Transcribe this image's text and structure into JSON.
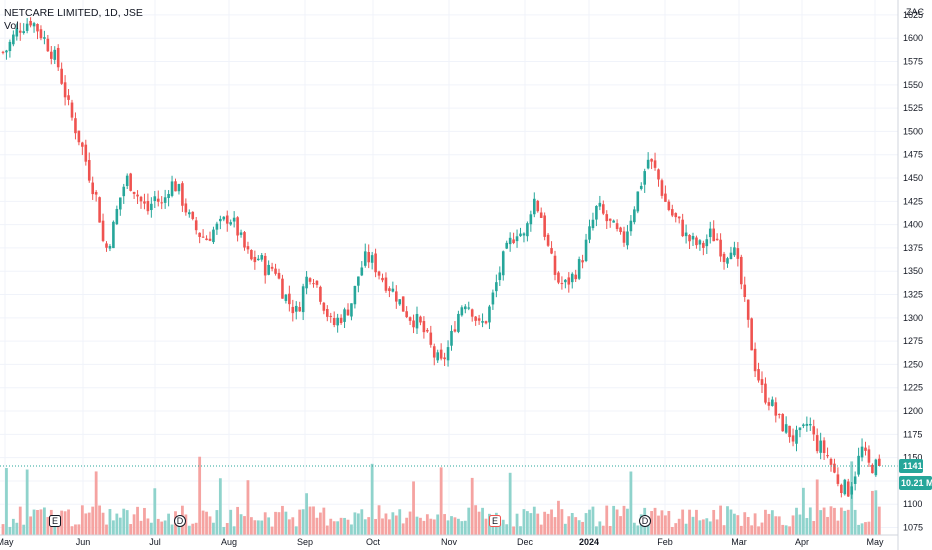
{
  "header": {
    "symbol_line": "NETCARE LIMITED, 1D, JSE",
    "volume_label": "Vol"
  },
  "colors": {
    "up": "#26a69a",
    "down": "#ef5350",
    "up_volume": "#8fd3cc",
    "down_volume": "#f5a3a1",
    "last_price": "#26a69a",
    "grid": "#f0f3fa"
  },
  "chart_data": {
    "type": "candlestick",
    "currency_label": "ZAC",
    "y_ticks": [
      1075,
      1100,
      1125,
      1150,
      1175,
      1200,
      1225,
      1250,
      1275,
      1300,
      1325,
      1350,
      1375,
      1400,
      1425,
      1450,
      1475,
      1500,
      1525,
      1550,
      1575,
      1600,
      1625
    ],
    "ylim": [
      1067,
      1641
    ],
    "x_tick_labels": [
      "May",
      "Jun",
      "Jul",
      "Aug",
      "Sep",
      "Oct",
      "Nov",
      "Dec",
      "2024",
      "Feb",
      "Mar",
      "Apr",
      "May"
    ],
    "last_price": "1141",
    "last_volume": "10.21 M",
    "events": [
      {
        "label": "E",
        "month": "May"
      },
      {
        "label": "D",
        "month": "Jul"
      },
      {
        "label": "E",
        "month": "Nov"
      },
      {
        "label": "D",
        "month": "Jan"
      }
    ],
    "month_segments": [
      {
        "month": "May 2023",
        "values": [
          1585,
          1610,
          1620,
          1600,
          1575,
          1520
        ]
      },
      {
        "month": "Jun 2023",
        "values": [
          1480,
          1450,
          1425,
          1370,
          1390,
          1425,
          1450,
          1440,
          1425,
          1415
        ]
      },
      {
        "month": "Jul 2023",
        "values": [
          1430,
          1420,
          1445,
          1440,
          1420,
          1400,
          1390,
          1385,
          1395,
          1400
        ]
      },
      {
        "month": "Aug 2023",
        "values": [
          1410,
          1395,
          1375,
          1360,
          1365,
          1350,
          1355,
          1330,
          1315,
          1305
        ]
      },
      {
        "month": "Sep 2023",
        "values": [
          1340,
          1350,
          1330,
          1310,
          1290,
          1300,
          1305,
          1320,
          1350,
          1365
        ]
      },
      {
        "month": "Oct 2023",
        "values": [
          1360,
          1345,
          1335,
          1325,
          1310,
          1300,
          1295,
          1280,
          1260,
          1250
        ]
      },
      {
        "month": "Nov 2023",
        "values": [
          1270,
          1300,
          1320,
          1310,
          1290,
          1300,
          1330,
          1360,
          1380,
          1395
        ]
      },
      {
        "month": "Dec 2023",
        "values": [
          1385,
          1430,
          1410,
          1370,
          1340,
          1335,
          1345,
          1360
        ]
      },
      {
        "month": "Jan 2024",
        "values": [
          1390,
          1420,
          1405,
          1395,
          1380,
          1410,
          1440,
          1470,
          1455
        ]
      },
      {
        "month": "Feb 2024",
        "values": [
          1425,
          1410,
          1400,
          1385,
          1380,
          1375,
          1390,
          1385,
          1365,
          1380
        ]
      },
      {
        "month": "Mar 2024",
        "values": [
          1350,
          1300,
          1250,
          1220,
          1210,
          1190,
          1180,
          1170
        ]
      },
      {
        "month": "Apr 2024",
        "values": [
          1175,
          1190,
          1165,
          1160,
          1150,
          1130,
          1120,
          1115,
          1135,
          1160,
          1141
        ]
      }
    ],
    "volume_units": "M",
    "volume_scale_note": "",
    "grid": true
  }
}
